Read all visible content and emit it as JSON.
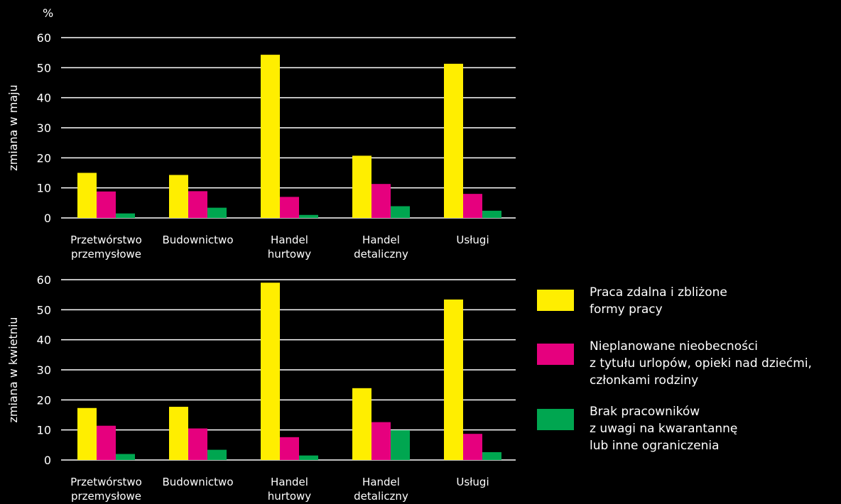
{
  "colors": {
    "background": "#000000",
    "text": "#ffffff",
    "grid": "#ffffff",
    "series": [
      "#ffee00",
      "#e6007e",
      "#00a650"
    ]
  },
  "chart_data": [
    {
      "type": "bar",
      "unit_label": "%",
      "ylabel": "zmiana w maju",
      "ylim": [
        0,
        60
      ],
      "yticks": [
        0,
        10,
        20,
        30,
        40,
        50,
        60
      ],
      "categories": [
        [
          "Przetwórstwo",
          "przemysłowe"
        ],
        [
          "Budownictwo"
        ],
        [
          "Handel",
          "hurtowy"
        ],
        [
          "Handel",
          "detaliczny"
        ],
        [
          "Usługi"
        ]
      ],
      "series": [
        {
          "name": "Praca zdalna i zbliżone formy pracy",
          "values": [
            15,
            14.3,
            54.3,
            20.7,
            51.3
          ]
        },
        {
          "name": "Nieplanowane nieobecności z tytułu urlopów, opieki nad dziećmi, członkami rodziny",
          "values": [
            8.8,
            8.9,
            7,
            11.3,
            8
          ]
        },
        {
          "name": "Brak pracowników z uwagi na kwarantannę lub inne ograniczenia",
          "values": [
            1.5,
            3.4,
            1,
            3.9,
            2.4
          ]
        }
      ]
    },
    {
      "type": "bar",
      "ylabel": "zmiana w kwietniu",
      "ylim": [
        0,
        60
      ],
      "yticks": [
        0,
        10,
        20,
        30,
        40,
        50,
        60
      ],
      "categories": [
        [
          "Przetwórstwo",
          "przemysłowe"
        ],
        [
          "Budownictwo"
        ],
        [
          "Handel",
          "hurtowy"
        ],
        [
          "Handel",
          "detaliczny"
        ],
        [
          "Usługi"
        ]
      ],
      "series": [
        {
          "name": "Praca zdalna i zbliżone formy pracy",
          "values": [
            17.3,
            17.7,
            59,
            23.9,
            53.4
          ]
        },
        {
          "name": "Nieplanowane nieobecności z tytułu urlopów, opieki nad dziećmi, członkami rodziny",
          "values": [
            11.4,
            10.5,
            7.6,
            12.6,
            8.7
          ]
        },
        {
          "name": "Brak pracowników z uwagi na kwarantannę lub inne ograniczenia",
          "values": [
            2,
            3.4,
            1.5,
            9.9,
            2.6
          ]
        }
      ]
    }
  ],
  "legend": [
    {
      "label": "Praca zdalna i zbliżone formy pracy",
      "lines": [
        "Praca zdalna i zbliżone",
        "formy pracy"
      ],
      "color": "#ffee00"
    },
    {
      "label": "Nieplanowane nieobecności z tytułu urlopów, opieki nad dziećmi, członkami rodziny",
      "lines": [
        "Nieplanowane nieobecności",
        "z tytułu urlopów, opieki nad dziećmi,",
        "członkami rodziny"
      ],
      "color": "#e6007e"
    },
    {
      "label": "Brak pracowników z uwagi na kwarantannę lub inne ograniczenia",
      "lines": [
        "Brak pracowników",
        "z uwagi na kwarantannę",
        "lub inne ograniczenia"
      ],
      "color": "#00a650"
    }
  ]
}
